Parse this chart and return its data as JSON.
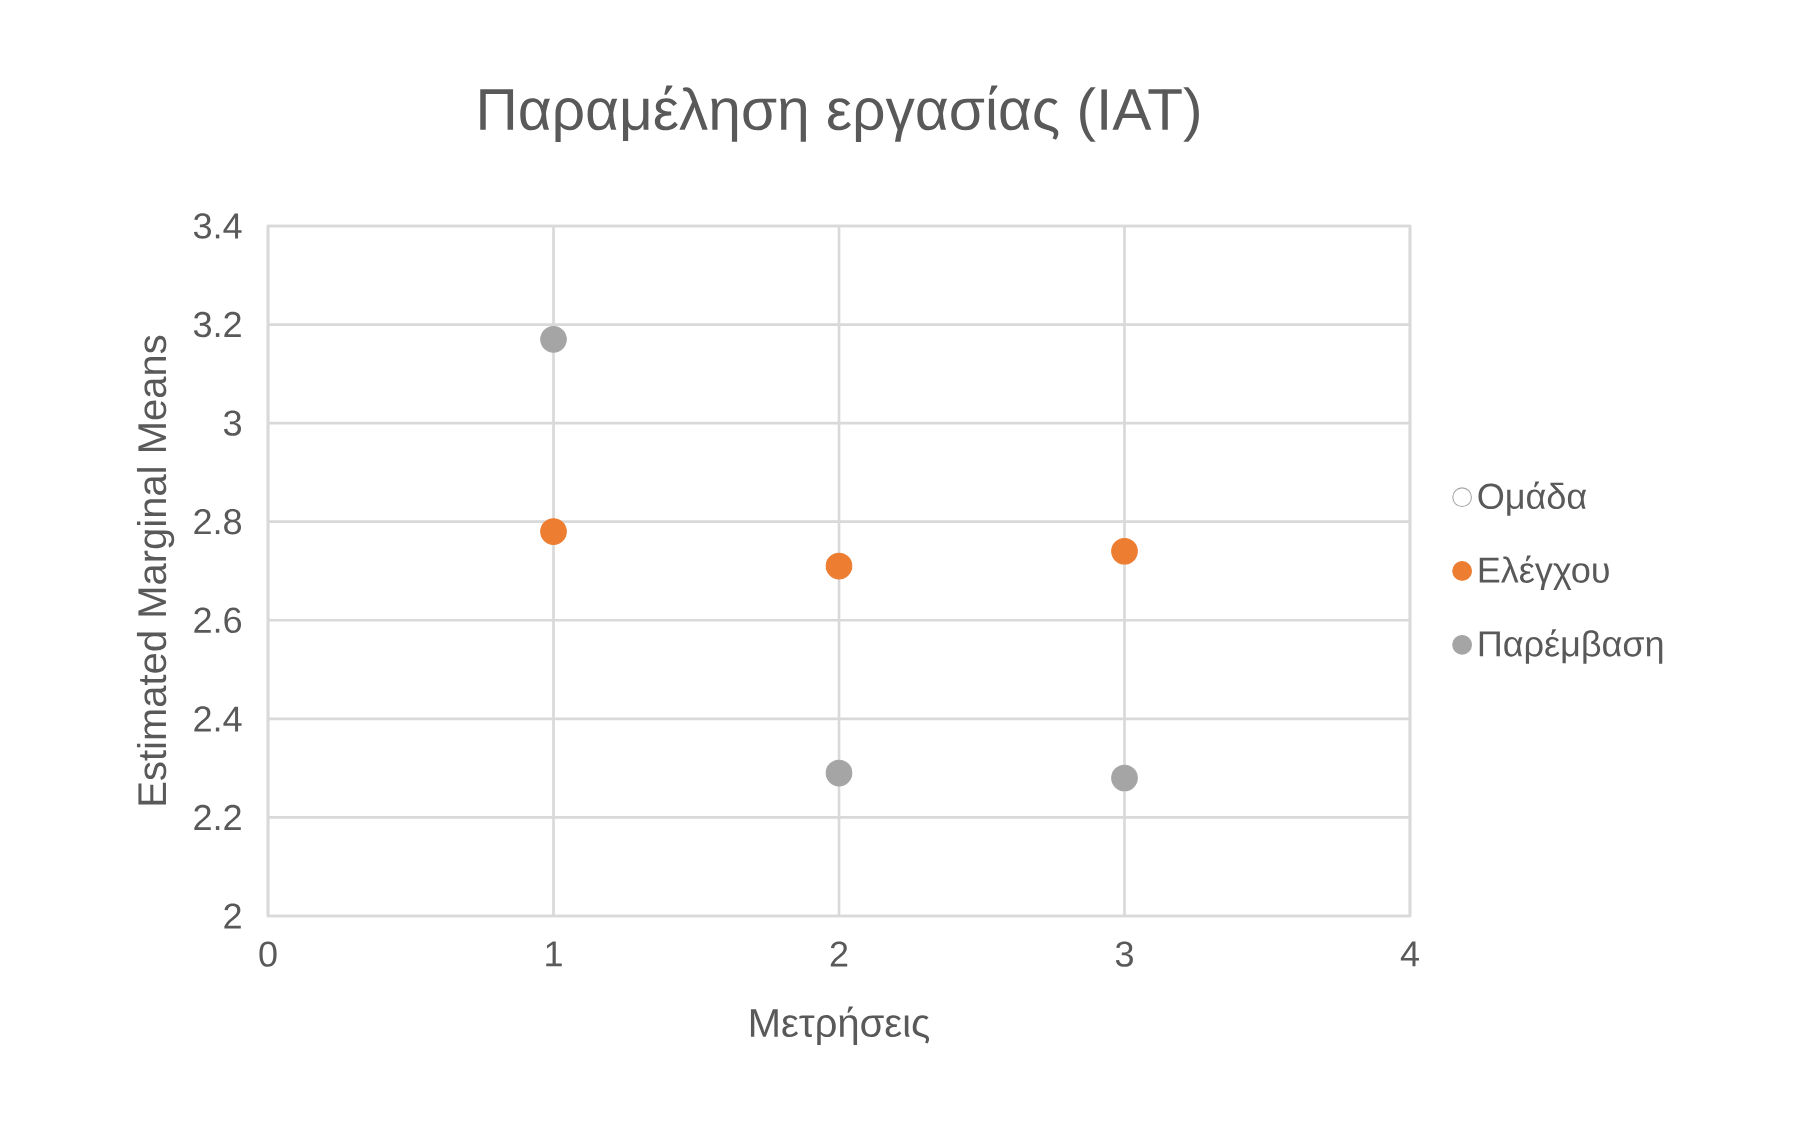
{
  "chart_data": {
    "type": "scatter",
    "title": "Παραμέληση εργασίας (IAT)",
    "xlabel": "Μετρήσεις",
    "ylabel": "Estimated Marginal Means",
    "legend_title": "Ομάδα",
    "x": [
      1,
      2,
      3
    ],
    "series": [
      {
        "name": "Ελέγχου",
        "color": "#ed7d31",
        "values": [
          2.78,
          2.71,
          2.74
        ]
      },
      {
        "name": "Παρέμβαση",
        "color": "#a5a5a5",
        "values": [
          3.17,
          2.29,
          2.28
        ]
      }
    ],
    "xlim": [
      0,
      4
    ],
    "xticks": [
      0,
      1,
      2,
      3,
      4
    ],
    "ylim": [
      2,
      3.4
    ],
    "yticks": [
      2,
      2.2,
      2.4,
      2.6,
      2.8,
      3,
      3.2,
      3.4
    ],
    "grid": true,
    "legend": "right",
    "marker": "circle"
  }
}
